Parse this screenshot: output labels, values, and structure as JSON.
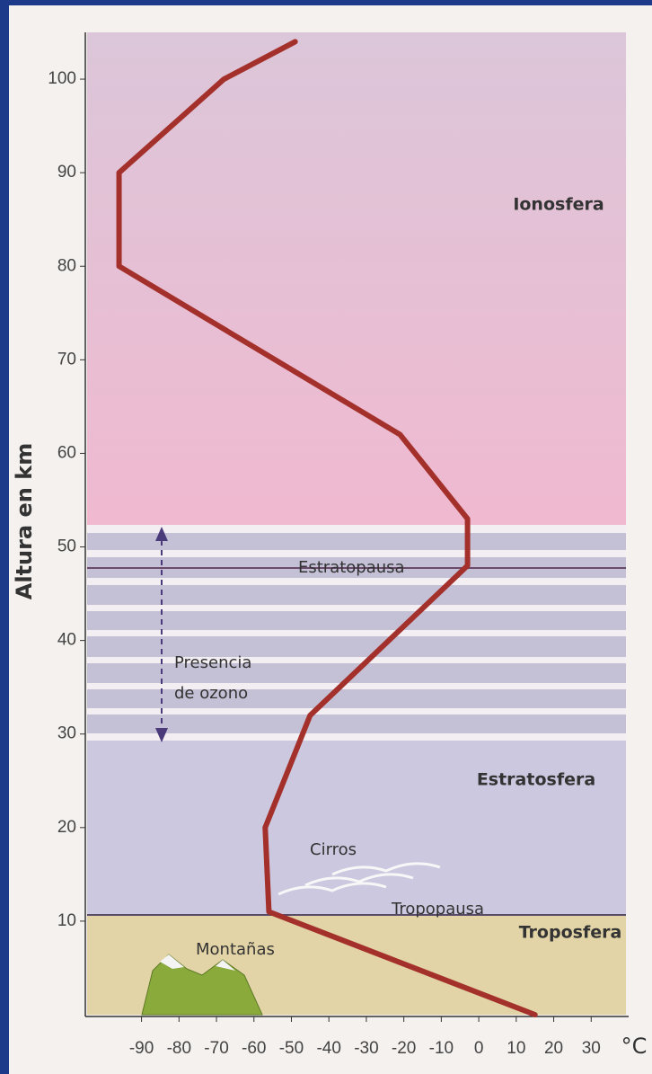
{
  "chart_data": {
    "type": "line",
    "x_label": "°C",
    "y_label": "Altura en km",
    "x": [
      15,
      -56,
      -57,
      -45,
      -3,
      -3,
      -21,
      -96,
      -96,
      -68,
      -49
    ],
    "values": [
      0,
      11,
      20,
      32,
      48,
      53,
      62,
      80,
      90,
      100,
      104
    ],
    "color": "#a3302a",
    "xlim": [
      -105,
      40
    ],
    "xticks": [
      -90,
      -80,
      -70,
      -60,
      -50,
      -40,
      -30,
      -20,
      -10,
      0,
      10,
      20,
      30
    ],
    "ylim": [
      0,
      105
    ],
    "yticks": [
      10,
      20,
      30,
      40,
      50,
      60,
      70,
      80,
      90,
      100
    ],
    "annotations": {
      "ionosfera": "Ionosfera",
      "estratosfera": "Estratosfera",
      "troposfera": "Troposfera",
      "estratopausa": "Estratopausa",
      "tropopausa": "Tropopausa",
      "ozono_1": "Presencia",
      "ozono_2": "de ozono",
      "cirros": "Cirros",
      "montanas": "Montañas"
    }
  }
}
